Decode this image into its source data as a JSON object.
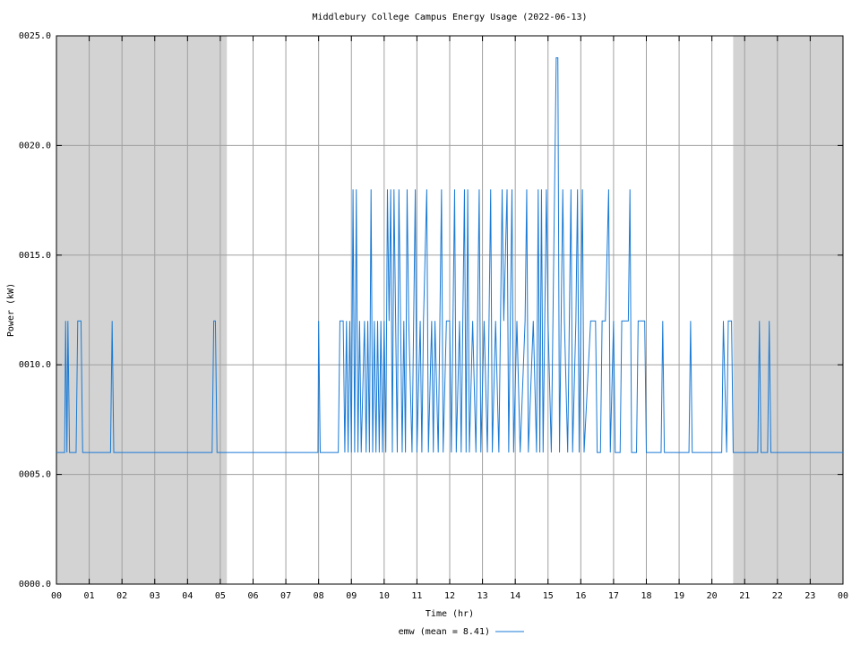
{
  "chart_data": {
    "type": "line",
    "title": "Middlebury College Campus Energy Usage (2022-06-13)",
    "x_label": "Time (hr)",
    "y_label": "Power (kW)",
    "xlim": [
      0,
      24
    ],
    "ylim": [
      0,
      25
    ],
    "xticks": [
      {
        "value": 0,
        "label": "00"
      },
      {
        "value": 1,
        "label": "01"
      },
      {
        "value": 2,
        "label": "02"
      },
      {
        "value": 3,
        "label": "03"
      },
      {
        "value": 4,
        "label": "04"
      },
      {
        "value": 5,
        "label": "05"
      },
      {
        "value": 6,
        "label": "06"
      },
      {
        "value": 7,
        "label": "07"
      },
      {
        "value": 8,
        "label": "08"
      },
      {
        "value": 9,
        "label": "09"
      },
      {
        "value": 10,
        "label": "10"
      },
      {
        "value": 11,
        "label": "11"
      },
      {
        "value": 12,
        "label": "12"
      },
      {
        "value": 13,
        "label": "13"
      },
      {
        "value": 14,
        "label": "14"
      },
      {
        "value": 15,
        "label": "15"
      },
      {
        "value": 16,
        "label": "16"
      },
      {
        "value": 17,
        "label": "17"
      },
      {
        "value": 18,
        "label": "18"
      },
      {
        "value": 19,
        "label": "19"
      },
      {
        "value": 20,
        "label": "20"
      },
      {
        "value": 21,
        "label": "21"
      },
      {
        "value": 22,
        "label": "22"
      },
      {
        "value": 23,
        "label": "23"
      },
      {
        "value": 24,
        "label": "00"
      }
    ],
    "yticks": [
      {
        "value": 0,
        "label": "0000.0"
      },
      {
        "value": 5,
        "label": "0005.0"
      },
      {
        "value": 10,
        "label": "0010.0"
      },
      {
        "value": 15,
        "label": "0015.0"
      },
      {
        "value": 20,
        "label": "0020.0"
      },
      {
        "value": 25,
        "label": "0025.0"
      }
    ],
    "grid": true,
    "shaded_regions": [
      [
        0,
        5.2
      ],
      [
        20.65,
        24
      ]
    ],
    "shade_color": "#d3d3d3",
    "x": [
      0,
      0.25,
      0.28,
      0.32,
      0.35,
      0.4,
      0.6,
      0.65,
      0.75,
      0.8,
      1.65,
      1.7,
      1.75,
      4.75,
      4.8,
      4.85,
      4.9,
      7.98,
      8.0,
      8.05,
      8.6,
      8.65,
      8.75,
      8.8,
      8.85,
      8.9,
      8.95,
      9.0,
      9.05,
      9.1,
      9.15,
      9.2,
      9.25,
      9.3,
      9.4,
      9.45,
      9.5,
      9.55,
      9.6,
      9.65,
      9.7,
      9.75,
      9.8,
      9.85,
      9.9,
      9.95,
      10.0,
      10.05,
      10.1,
      10.15,
      10.2,
      10.25,
      10.3,
      10.35,
      10.4,
      10.45,
      10.5,
      10.55,
      10.6,
      10.65,
      10.7,
      10.75,
      10.85,
      10.9,
      10.95,
      11.0,
      11.1,
      11.15,
      11.2,
      11.3,
      11.35,
      11.45,
      11.5,
      11.55,
      11.65,
      11.75,
      11.8,
      11.9,
      12.0,
      12.05,
      12.15,
      12.2,
      12.3,
      12.35,
      12.45,
      12.5,
      12.55,
      12.6,
      12.7,
      12.8,
      12.9,
      12.95,
      13.05,
      13.15,
      13.25,
      13.3,
      13.4,
      13.5,
      13.6,
      13.65,
      13.75,
      13.8,
      13.9,
      13.95,
      14.05,
      14.15,
      14.3,
      14.35,
      14.4,
      14.55,
      14.65,
      14.7,
      14.75,
      14.8,
      14.85,
      14.95,
      15.0,
      15.1,
      15.15,
      15.25,
      15.3,
      15.35,
      15.45,
      15.5,
      15.6,
      15.7,
      15.75,
      15.85,
      15.9,
      15.95,
      16.05,
      16.1,
      16.3,
      16.45,
      16.5,
      16.6,
      16.65,
      16.75,
      16.85,
      16.9,
      17.0,
      17.05,
      17.2,
      17.25,
      17.45,
      17.5,
      17.55,
      17.7,
      17.75,
      17.95,
      18.0,
      18.45,
      18.5,
      18.55,
      19.3,
      19.35,
      19.4,
      20.3,
      20.35,
      20.45,
      20.5,
      20.6,
      20.65,
      21.4,
      21.45,
      21.5,
      21.7,
      21.75,
      21.8,
      24
    ],
    "series": [
      {
        "name": "emw (mean = 8.41)",
        "color": "#1a7ad4",
        "values": [
          6,
          6,
          12,
          6,
          12,
          6,
          6,
          12,
          12,
          6,
          6,
          12,
          6,
          6,
          12,
          12,
          6,
          6,
          12,
          6,
          6,
          12,
          12,
          6,
          12,
          6,
          12,
          6,
          18,
          6,
          18,
          6,
          12,
          6,
          12,
          6,
          12,
          6,
          18,
          6,
          12,
          6,
          12,
          6,
          12,
          6,
          12,
          6,
          18,
          12,
          18,
          6,
          18,
          12,
          6,
          18,
          12,
          6,
          12,
          6,
          18,
          12,
          6,
          12,
          18,
          6,
          12,
          6,
          12,
          18,
          6,
          12,
          6,
          12,
          6,
          18,
          6,
          12,
          12,
          6,
          18,
          6,
          12,
          6,
          18,
          6,
          18,
          6,
          12,
          6,
          18,
          6,
          12,
          6,
          18,
          6,
          12,
          6,
          18,
          12,
          18,
          6,
          18,
          6,
          12,
          6,
          12,
          18,
          6,
          12,
          6,
          18,
          6,
          18,
          6,
          18,
          12,
          6,
          12,
          24,
          24,
          6,
          18,
          12,
          6,
          18,
          6,
          12,
          18,
          6,
          18,
          6,
          12,
          12,
          6,
          6,
          12,
          12,
          18,
          6,
          12,
          6,
          6,
          12,
          12,
          18,
          6,
          6,
          12,
          12,
          6,
          6,
          12,
          6,
          6,
          12,
          6,
          6,
          12,
          6,
          12,
          12,
          6,
          6,
          12,
          6,
          6,
          12,
          6,
          6
        ]
      }
    ]
  }
}
